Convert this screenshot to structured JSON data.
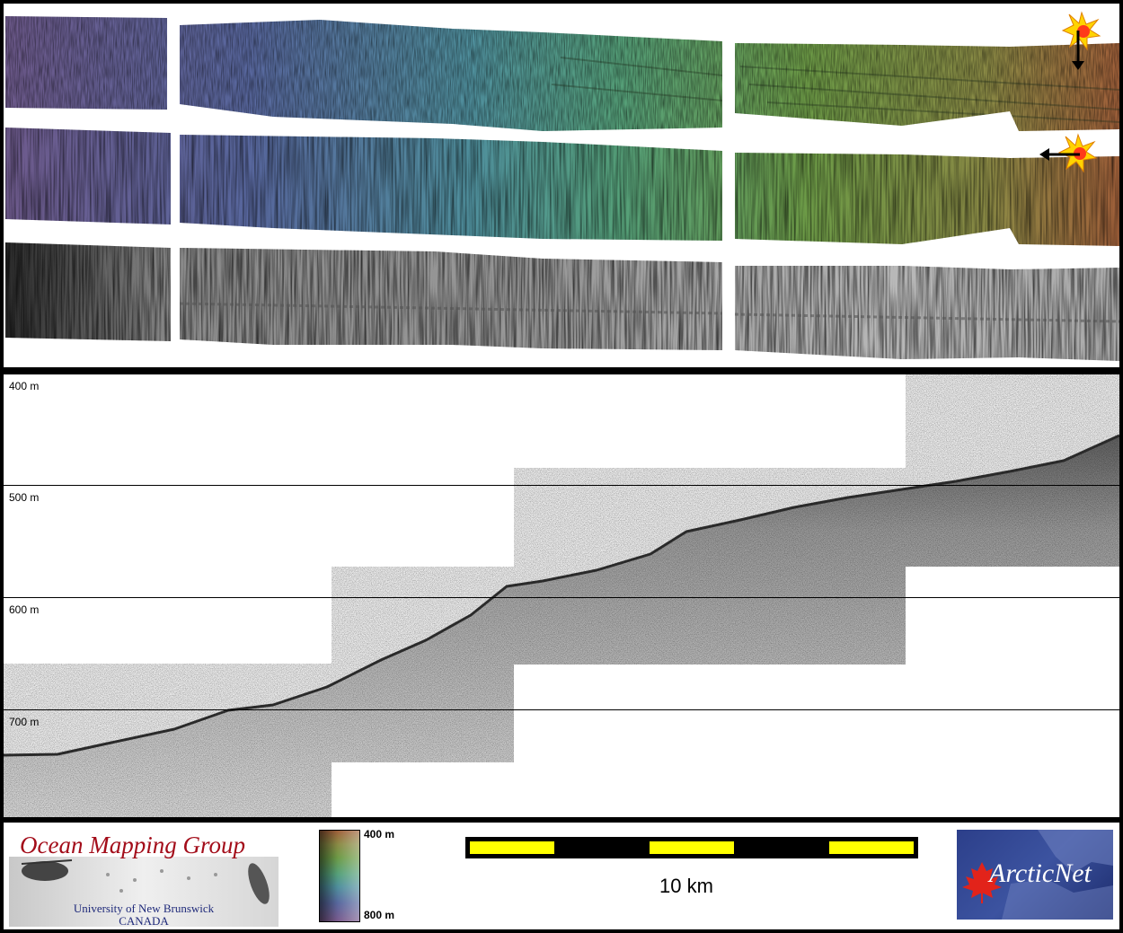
{
  "profile": {
    "depth_labels": [
      "400 m",
      "500 m",
      "600 m",
      "700 m"
    ]
  },
  "legend": {
    "top_label": "400 m",
    "bottom_label": "800 m"
  },
  "scale_bar": {
    "label": "10 km"
  },
  "logos": {
    "omg_title": "Ocean Mapping Group",
    "omg_university": "University of New Brunswick",
    "omg_country": "CANADA",
    "arcticnet_text": "ArcticNet"
  },
  "icons": [
    "sun-icon",
    "down-arrow-icon",
    "left-arrow-icon",
    "maple-leaf-icon"
  ]
}
